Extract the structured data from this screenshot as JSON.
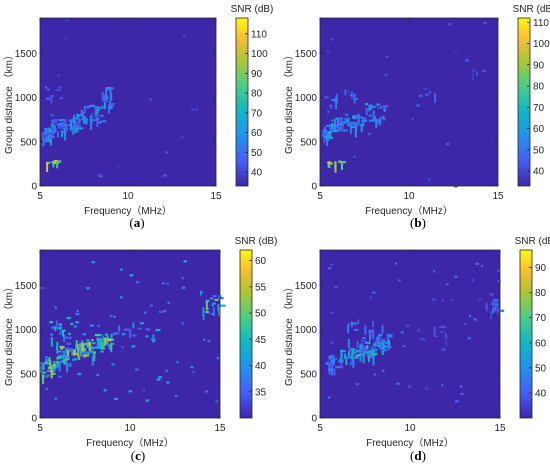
{
  "chart_data": [
    {
      "type": "heatmap",
      "caption": "(a)",
      "xlabel": "Frequency（MHz）",
      "ylabel": "Group distance （km）",
      "colorbar_title": "SNR (dB)",
      "xlim": [
        5,
        15
      ],
      "ylim": [
        0,
        1900
      ],
      "xticks": [
        5,
        10,
        15
      ],
      "yticks": [
        0,
        500,
        1000,
        1500
      ],
      "clim": [
        33,
        118
      ],
      "cticks": [
        40,
        50,
        60,
        70,
        80,
        90,
        100,
        110
      ],
      "background_db": 33,
      "noise_points": 15,
      "noise_range": [
        0,
        1900
      ],
      "echo_clusters": [
        {
          "f": [
            5.1,
            5.6
          ],
          "d": [
            520,
            660
          ],
          "db": [
            45,
            72
          ],
          "n": 26
        },
        {
          "f": [
            5.6,
            6.4
          ],
          "d": [
            600,
            760
          ],
          "db": [
            45,
            68
          ],
          "n": 26
        },
        {
          "f": [
            6.4,
            7.3
          ],
          "d": [
            650,
            820
          ],
          "db": [
            45,
            66
          ],
          "n": 28
        },
        {
          "f": [
            7.3,
            8.5
          ],
          "d": [
            730,
            920
          ],
          "db": [
            45,
            66
          ],
          "n": 30
        },
        {
          "f": [
            8.5,
            9.0
          ],
          "d": [
            880,
            1120
          ],
          "db": [
            45,
            66
          ],
          "n": 22
        },
        {
          "f": [
            5.2,
            6.2
          ],
          "d": [
            1000,
            1130
          ],
          "db": [
            40,
            52
          ],
          "n": 8
        },
        {
          "f": [
            5.3,
            6.2
          ],
          "d": [
            265,
            300
          ],
          "db": [
            80,
            110
          ],
          "n": 10
        }
      ]
    },
    {
      "type": "heatmap",
      "caption": "(b)",
      "xlabel": "Frequency（MHz）",
      "ylabel": "Group distance （km）",
      "colorbar_title": "SNR (dB)",
      "xlim": [
        5,
        15
      ],
      "ylim": [
        0,
        1900
      ],
      "xticks": [
        5,
        10,
        15
      ],
      "yticks": [
        0,
        500,
        1000,
        1500
      ],
      "clim": [
        33,
        112
      ],
      "cticks": [
        40,
        50,
        60,
        70,
        80,
        90,
        100,
        110
      ],
      "background_db": 33,
      "noise_points": 18,
      "noise_range": [
        0,
        1900
      ],
      "echo_clusters": [
        {
          "f": [
            5.1,
            5.6
          ],
          "d": [
            520,
            700
          ],
          "db": [
            45,
            70
          ],
          "n": 26
        },
        {
          "f": [
            5.6,
            6.4
          ],
          "d": [
            620,
            780
          ],
          "db": [
            45,
            66
          ],
          "n": 24
        },
        {
          "f": [
            6.4,
            7.4
          ],
          "d": [
            660,
            820
          ],
          "db": [
            45,
            64
          ],
          "n": 26
        },
        {
          "f": [
            7.4,
            8.6
          ],
          "d": [
            740,
            960
          ],
          "db": [
            45,
            64
          ],
          "n": 26
        },
        {
          "f": [
            5.2,
            7.0
          ],
          "d": [
            850,
            1100
          ],
          "db": [
            40,
            55
          ],
          "n": 14
        },
        {
          "f": [
            10.8,
            11.5
          ],
          "d": [
            1030,
            1120
          ],
          "db": [
            38,
            48
          ],
          "n": 4
        },
        {
          "f": [
            13.5,
            14.5
          ],
          "d": [
            1250,
            1330
          ],
          "db": [
            38,
            48
          ],
          "n": 4
        },
        {
          "f": [
            5.3,
            6.2
          ],
          "d": [
            265,
            300
          ],
          "db": [
            80,
            108
          ],
          "n": 10
        }
      ]
    },
    {
      "type": "heatmap",
      "caption": "(c)",
      "xlabel": "Frequency（MHz）",
      "ylabel": "Group distance （km）",
      "colorbar_title": "SNR (dB)",
      "xlim": [
        5,
        15
      ],
      "ylim": [
        0,
        1900
      ],
      "xticks": [
        5,
        10,
        15
      ],
      "yticks": [
        0,
        500,
        1000,
        1500
      ],
      "clim": [
        30,
        62
      ],
      "cticks": [
        35,
        40,
        45,
        50,
        55,
        60
      ],
      "background_db": 30,
      "noise_points": 70,
      "noise_range": [
        200,
        1800
      ],
      "echo_clusters": [
        {
          "f": [
            5.0,
            5.8
          ],
          "d": [
            480,
            700
          ],
          "db": [
            36,
            55
          ],
          "n": 30
        },
        {
          "f": [
            5.8,
            6.8
          ],
          "d": [
            600,
            820
          ],
          "db": [
            36,
            55
          ],
          "n": 40
        },
        {
          "f": [
            6.8,
            8.0
          ],
          "d": [
            700,
            900
          ],
          "db": [
            38,
            58
          ],
          "n": 45
        },
        {
          "f": [
            8.0,
            9.0
          ],
          "d": [
            800,
            960
          ],
          "db": [
            40,
            57
          ],
          "n": 35
        },
        {
          "f": [
            5.5,
            7.0
          ],
          "d": [
            850,
            1200
          ],
          "db": [
            35,
            48
          ],
          "n": 20
        },
        {
          "f": [
            9.0,
            11.5
          ],
          "d": [
            900,
            1100
          ],
          "db": [
            34,
            44
          ],
          "n": 15
        },
        {
          "f": [
            14.0,
            15.0
          ],
          "d": [
            1200,
            1400
          ],
          "db": [
            36,
            52
          ],
          "n": 16
        }
      ]
    },
    {
      "type": "heatmap",
      "caption": "(d)",
      "xlabel": "Frequency（MHz）",
      "ylabel": "Group distance （km）",
      "colorbar_title": "SNR (dB)",
      "xlim": [
        5,
        15
      ],
      "ylim": [
        0,
        1900
      ],
      "xticks": [
        5,
        10,
        15
      ],
      "yticks": [
        0,
        500,
        1000,
        1500
      ],
      "clim": [
        30,
        97
      ],
      "cticks": [
        40,
        50,
        60,
        70,
        80,
        90
      ],
      "background_db": 30,
      "noise_points": 50,
      "noise_range": [
        200,
        1800
      ],
      "echo_clusters": [
        {
          "f": [
            5.3,
            6.0
          ],
          "d": [
            550,
            720
          ],
          "db": [
            38,
            58
          ],
          "n": 24
        },
        {
          "f": [
            6.0,
            7.0
          ],
          "d": [
            620,
            800
          ],
          "db": [
            38,
            62
          ],
          "n": 30
        },
        {
          "f": [
            7.0,
            8.0
          ],
          "d": [
            700,
            880
          ],
          "db": [
            40,
            70
          ],
          "n": 34
        },
        {
          "f": [
            8.0,
            8.8
          ],
          "d": [
            780,
            960
          ],
          "db": [
            40,
            64
          ],
          "n": 26
        },
        {
          "f": [
            6.5,
            8.5
          ],
          "d": [
            850,
            1150
          ],
          "db": [
            36,
            52
          ],
          "n": 18
        },
        {
          "f": [
            10.5,
            12.0
          ],
          "d": [
            900,
            1100
          ],
          "db": [
            34,
            44
          ],
          "n": 8
        },
        {
          "f": [
            14.2,
            15.0
          ],
          "d": [
            1200,
            1350
          ],
          "db": [
            36,
            50
          ],
          "n": 12
        }
      ]
    }
  ]
}
